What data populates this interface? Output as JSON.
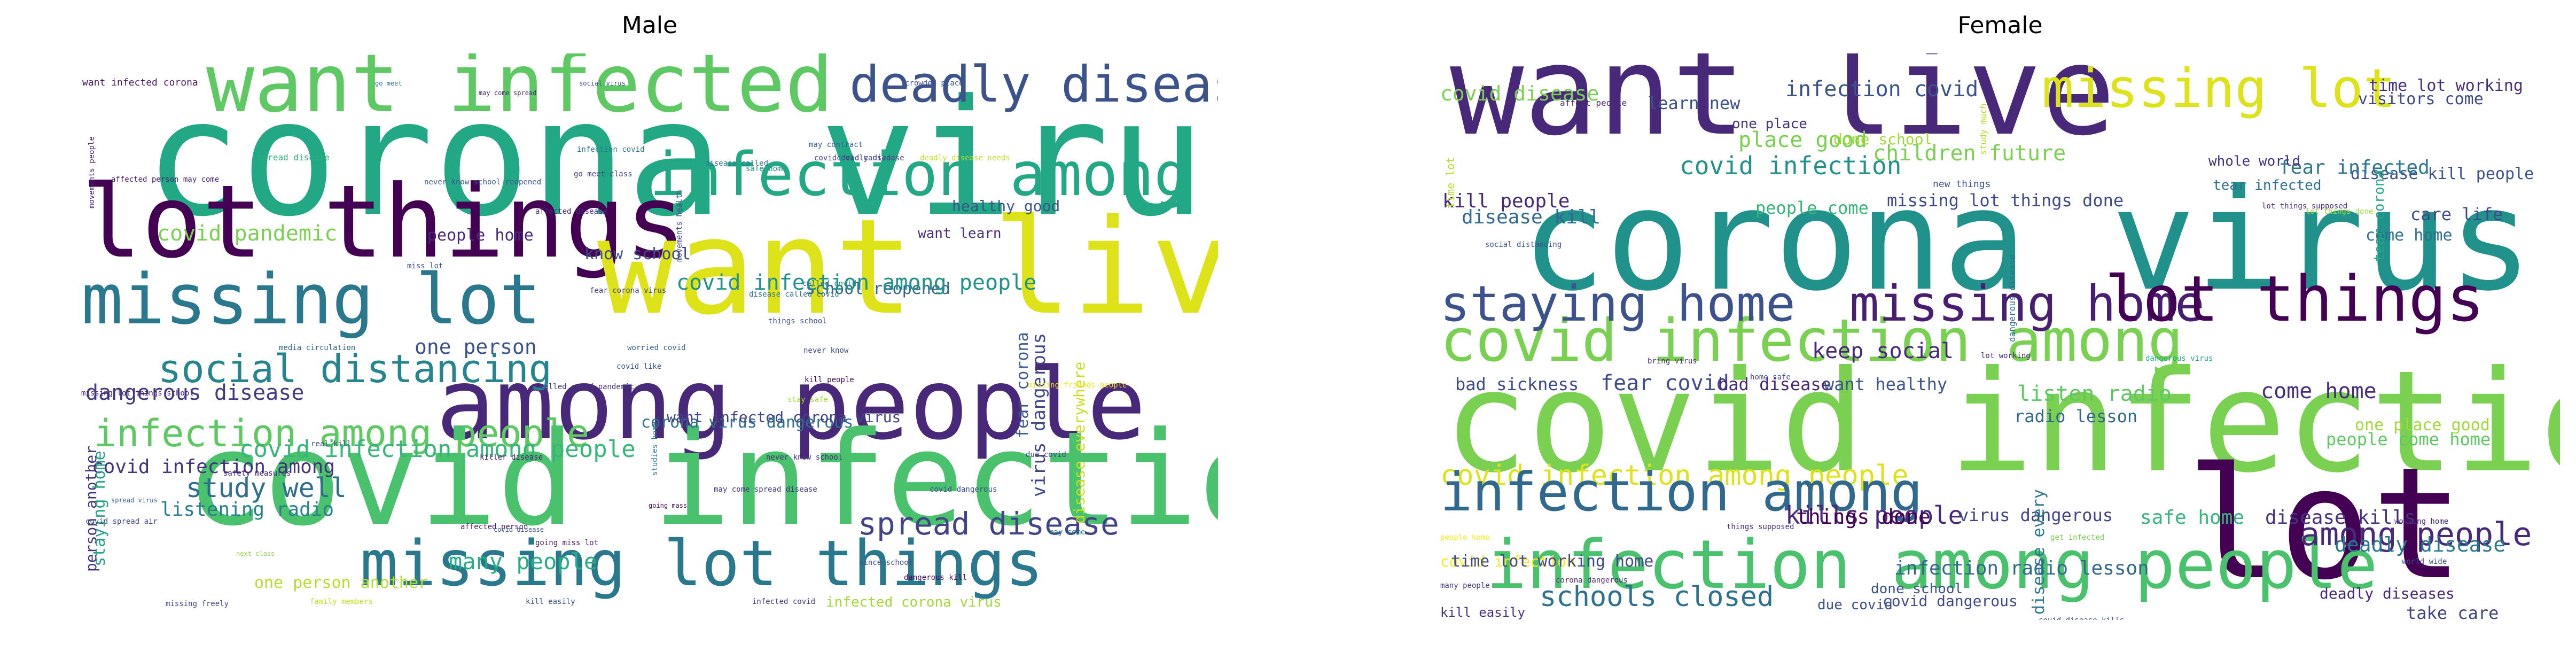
{
  "chart_data": [
    {
      "type": "wordcloud",
      "title": "Male",
      "background": "#ffffff",
      "colormap": "viridis",
      "words": [
        {
          "text": "corona virus",
          "color": "#22a884"
        },
        {
          "text": "want infected",
          "color": "#5ec962"
        },
        {
          "text": "deadly disease",
          "color": "#3b528b"
        },
        {
          "text": "lot things",
          "color": "#440154"
        },
        {
          "text": "infection among",
          "color": "#22a884"
        },
        {
          "text": "want live",
          "color": "#dde318"
        },
        {
          "text": "missing lot",
          "color": "#2a788e"
        },
        {
          "text": "among people",
          "color": "#482878"
        },
        {
          "text": "social distancing",
          "color": "#25858e"
        },
        {
          "text": "infection among people",
          "color": "#5ec962"
        },
        {
          "text": "covid infection",
          "color": "#4ac16d"
        },
        {
          "text": "missing lot things",
          "color": "#2a788e"
        },
        {
          "text": "spread disease",
          "color": "#414487"
        },
        {
          "text": "covid infection among people",
          "color": "#35b779"
        },
        {
          "text": "covid pandemic",
          "color": "#7ad151"
        },
        {
          "text": "people home",
          "color": "#482878"
        },
        {
          "text": "know school",
          "color": "#3e4a89"
        },
        {
          "text": "school reopened",
          "color": "#31688e"
        },
        {
          "text": "healthy good",
          "color": "#3b528b"
        },
        {
          "text": "want learn",
          "color": "#472d7b"
        },
        {
          "text": "dangerous disease",
          "color": "#443a83"
        },
        {
          "text": "covid infection among",
          "color": "#46337e"
        },
        {
          "text": "study well",
          "color": "#2e6e8e"
        },
        {
          "text": "listening radio",
          "color": "#26828e"
        },
        {
          "text": "one person another",
          "color": "#b5de2b"
        },
        {
          "text": "many people",
          "color": "#27ad81"
        },
        {
          "text": "one person",
          "color": "#3b528b"
        },
        {
          "text": "corona virus dangerous",
          "color": "#2c728e"
        },
        {
          "text": "want infected corona virus",
          "color": "#414487"
        },
        {
          "text": "infected corona virus",
          "color": "#a0da39"
        },
        {
          "text": "person another",
          "color": "#46327e"
        },
        {
          "text": "staying home",
          "color": "#20a386"
        },
        {
          "text": "virus dangerous",
          "color": "#3f4788"
        },
        {
          "text": "disease everywhere",
          "color": "#c8e020"
        },
        {
          "text": "fear corona",
          "color": "#375b8d"
        },
        {
          "text": "covid infection among people",
          "color": "#21918c"
        },
        {
          "text": "want infected corona",
          "color": "#471164"
        },
        {
          "text": "go meet",
          "color": "#2f6c8e"
        },
        {
          "text": "may come spread",
          "color": "#472c7a"
        },
        {
          "text": "social virus",
          "color": "#3d4e8a"
        },
        {
          "text": "crowded place",
          "color": "#3b518b"
        },
        {
          "text": "spread disease",
          "color": "#2db27d"
        },
        {
          "text": "never know school reopened",
          "color": "#39568c"
        },
        {
          "text": "infection covid",
          "color": "#287c8e"
        },
        {
          "text": "disease called",
          "color": "#2a778e"
        },
        {
          "text": "go meet class",
          "color": "#424186"
        },
        {
          "text": "covid deadly disease",
          "color": "#443b84"
        },
        {
          "text": "covid caused",
          "color": "#3e4c8a"
        },
        {
          "text": "deadly disease needs",
          "color": "#c2df23"
        },
        {
          "text": "safe home",
          "color": "#1f958b"
        },
        {
          "text": "may contract",
          "color": "#355f8d"
        },
        {
          "text": "affected disease",
          "color": "#472a7a"
        },
        {
          "text": "miss lot",
          "color": "#3a548c"
        },
        {
          "text": "movements health",
          "color": "#3d4e8a"
        },
        {
          "text": "called covid",
          "color": "#25848e"
        },
        {
          "text": "movements people",
          "color": "#481f70"
        },
        {
          "text": "disease called covid",
          "color": "#2a768e"
        },
        {
          "text": "fear corona virus",
          "color": "#433e85"
        },
        {
          "text": "worried covid",
          "color": "#32658e"
        },
        {
          "text": "covid like",
          "color": "#38588c"
        },
        {
          "text": "things school",
          "color": "#3f4889"
        },
        {
          "text": "never know",
          "color": "#3d4d8a"
        },
        {
          "text": "kill people",
          "color": "#470e61"
        },
        {
          "text": "media circulation",
          "color": "#2f6b8e"
        },
        {
          "text": "missing lot things school",
          "color": "#482475"
        },
        {
          "text": "called covid pandemic",
          "color": "#453781"
        },
        {
          "text": "stay safe",
          "color": "#a5db36"
        },
        {
          "text": "missing friends people",
          "color": "#f1e51d"
        },
        {
          "text": "real kill",
          "color": "#3d4e8a"
        },
        {
          "text": "safety measures",
          "color": "#482576"
        },
        {
          "text": "killer disease",
          "color": "#48196b"
        },
        {
          "text": "studies home",
          "color": "#2b748e"
        },
        {
          "text": "due covid",
          "color": "#3e4a89"
        },
        {
          "text": "may come",
          "color": "#29798e"
        },
        {
          "text": "never know school",
          "color": "#46307e"
        },
        {
          "text": "affected person",
          "color": "#481a6c"
        },
        {
          "text": "going miss lot",
          "color": "#481769"
        },
        {
          "text": "may come spread disease",
          "color": "#453882"
        },
        {
          "text": "covid dangerous",
          "color": "#3c4f8a"
        },
        {
          "text": "spread virus",
          "color": "#34618d"
        },
        {
          "text": "next class",
          "color": "#8bd646"
        },
        {
          "text": "covid disease",
          "color": "#3a538b"
        },
        {
          "text": "going mass",
          "color": "#470d60"
        },
        {
          "text": "since school",
          "color": "#3b528b"
        },
        {
          "text": "dangerous kill",
          "color": "#46085c"
        },
        {
          "text": "missing freely",
          "color": "#3e4989"
        },
        {
          "text": "family members",
          "color": "#c0df25"
        },
        {
          "text": "kill easily",
          "color": "#3b528b"
        },
        {
          "text": "infected covid",
          "color": "#453882"
        },
        {
          "text": "covid spread air",
          "color": "#3e4a89"
        },
        {
          "text": "affected person may come",
          "color": "#482173"
        }
      ]
    },
    {
      "type": "wordcloud",
      "title": "Female",
      "background": "#ffffff",
      "colormap": "viridis",
      "words": [
        {
          "text": "want live",
          "color": "#482878"
        },
        {
          "text": "missing lot",
          "color": "#dde318"
        },
        {
          "text": "corona virus",
          "color": "#21918c"
        },
        {
          "text": "covid infection among",
          "color": "#7ad151"
        },
        {
          "text": "staying home",
          "color": "#3b528b"
        },
        {
          "text": "missing home",
          "color": "#481f70"
        },
        {
          "text": "lot things",
          "color": "#440154"
        },
        {
          "text": "covid infection",
          "color": "#7ad151"
        },
        {
          "text": "covid infection among people",
          "color": "#dde318"
        },
        {
          "text": "infection among",
          "color": "#31688e"
        },
        {
          "text": "lot things",
          "color": "#440154"
        },
        {
          "text": "infection among people",
          "color": "#4ac16d"
        },
        {
          "text": "schools closed",
          "color": "#2c728e"
        },
        {
          "text": "among people",
          "color": "#482878"
        },
        {
          "text": "covid disease",
          "color": "#7ad151"
        },
        {
          "text": "infection covid",
          "color": "#3b528b"
        },
        {
          "text": "time lot working",
          "color": "#472d7b"
        },
        {
          "text": "visitors come",
          "color": "#3e4a89"
        },
        {
          "text": "disease kill people",
          "color": "#3b528b"
        },
        {
          "text": "covid infection",
          "color": "#21918c"
        },
        {
          "text": "kill people",
          "color": "#482878"
        },
        {
          "text": "disease kill",
          "color": "#31688e"
        },
        {
          "text": "people come",
          "color": "#35b779"
        },
        {
          "text": "missing lot things done",
          "color": "#3e4a89"
        },
        {
          "text": "fear infected",
          "color": "#2a788e"
        },
        {
          "text": "whole world",
          "color": "#46327e"
        },
        {
          "text": "tear infected",
          "color": "#2c728e"
        },
        {
          "text": "fear covid",
          "color": "#3e4a89"
        },
        {
          "text": "keep social",
          "color": "#482878"
        },
        {
          "text": "listen radio",
          "color": "#5ec962"
        },
        {
          "text": "come home",
          "color": "#472d7b"
        },
        {
          "text": "one place good",
          "color": "#a0da39"
        },
        {
          "text": "people come home",
          "color": "#5ec962"
        },
        {
          "text": "bad sickness",
          "color": "#3e4a89"
        },
        {
          "text": "bad disease",
          "color": "#482878"
        },
        {
          "text": "want healthy",
          "color": "#3b528b"
        },
        {
          "text": "radio lesson",
          "color": "#31688e"
        },
        {
          "text": "kills people",
          "color": "#482878"
        },
        {
          "text": "virus dangerous",
          "color": "#414487"
        },
        {
          "text": "safe home",
          "color": "#35b779"
        },
        {
          "text": "disease kills",
          "color": "#46327e"
        },
        {
          "text": "deadly disease",
          "color": "#2a788e"
        },
        {
          "text": "things done",
          "color": "#440154"
        },
        {
          "text": "infection radio lesson",
          "color": "#31688e"
        },
        {
          "text": "deadly diseases",
          "color": "#482878"
        },
        {
          "text": "done school",
          "color": "#3b528b"
        },
        {
          "text": "covid dangerous",
          "color": "#3e4a89"
        },
        {
          "text": "due covid",
          "color": "#3b528b"
        },
        {
          "text": "kill easily",
          "color": "#46327e"
        },
        {
          "text": "take care",
          "color": "#414487"
        },
        {
          "text": "disease every",
          "color": "#2a788e"
        },
        {
          "text": "children future",
          "color": "#7ad151"
        },
        {
          "text": "learn new",
          "color": "#3b528b"
        },
        {
          "text": "affect people",
          "color": "#482878"
        },
        {
          "text": "one place",
          "color": "#46327e"
        },
        {
          "text": "place good",
          "color": "#7ad151"
        },
        {
          "text": "done school",
          "color": "#a0da39"
        },
        {
          "text": "study much",
          "color": "#b5de2b"
        },
        {
          "text": "care life",
          "color": "#3e4a89"
        },
        {
          "text": "come home",
          "color": "#2c728e"
        },
        {
          "text": "tear corona",
          "color": "#22a884"
        },
        {
          "text": "social distancing",
          "color": "#3b528b"
        },
        {
          "text": "bring virus",
          "color": "#482878"
        },
        {
          "text": "home safe",
          "color": "#3e4a89"
        },
        {
          "text": "dangerous disease",
          "color": "#2c728e"
        },
        {
          "text": "new things",
          "color": "#3b528b"
        },
        {
          "text": "lot things supposed",
          "color": "#482878"
        },
        {
          "text": "lot things done",
          "color": "#a0da39"
        },
        {
          "text": "lot working",
          "color": "#482878"
        },
        {
          "text": "things supposed",
          "color": "#472d7b"
        },
        {
          "text": "get infected",
          "color": "#7ad151"
        },
        {
          "text": "people home",
          "color": "#fde725"
        },
        {
          "text": "working home",
          "color": "#482878"
        },
        {
          "text": "world wide",
          "color": "#3b528b"
        },
        {
          "text": "many people",
          "color": "#46327e"
        },
        {
          "text": "corona dangerous",
          "color": "#482878"
        },
        {
          "text": "covid disease kills",
          "color": "#3b528b"
        },
        {
          "text": "lot working home",
          "color": "#a0da39"
        },
        {
          "text": "someone bring",
          "color": "#b5de2b"
        },
        {
          "text": "time lot",
          "color": "#b5de2b"
        },
        {
          "text": "covid infection",
          "color": "#fde725"
        },
        {
          "text": "dangerous virus",
          "color": "#22a884"
        },
        {
          "text": "time lot working home",
          "color": "#3e4a89"
        }
      ]
    }
  ]
}
